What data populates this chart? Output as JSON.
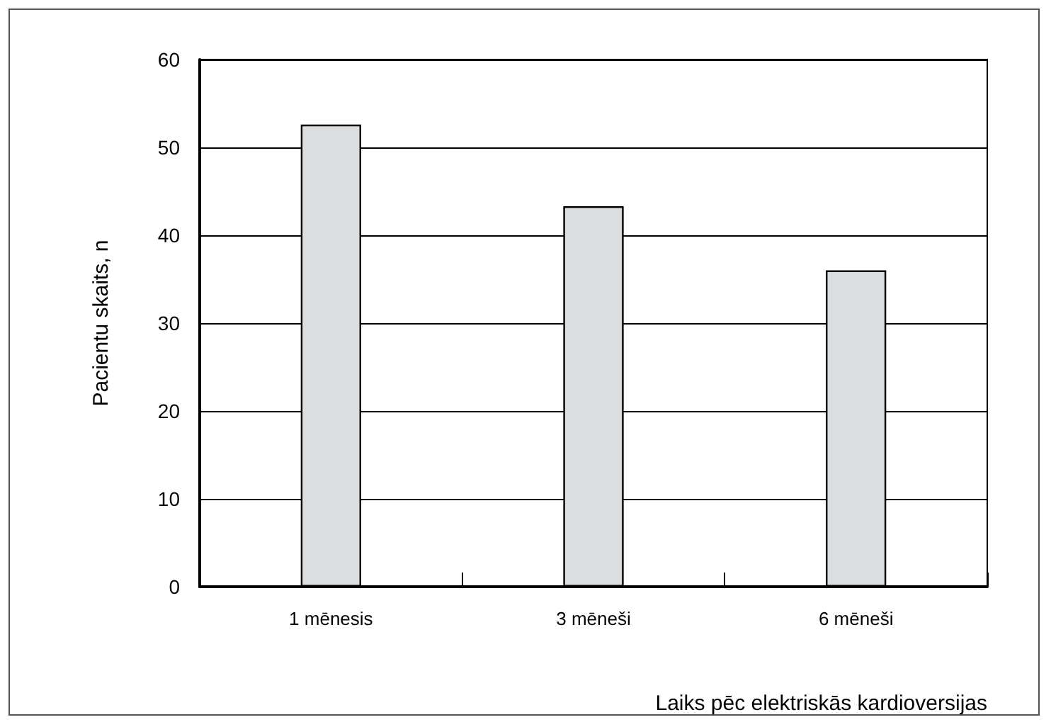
{
  "chart_data": {
    "type": "bar",
    "xlabel": "Laiks pēc elektriskās kardioversijas",
    "ylabel": "Pacientu skaits, n",
    "categories": [
      "1 mēnesis",
      "3 mēneši",
      "6 mēneši"
    ],
    "values": [
      52.6,
      43.3,
      36.0
    ],
    "color": "#dcdddf",
    "ylim": [
      0,
      60
    ],
    "yticks": [
      0,
      10,
      20,
      30,
      40,
      50,
      60
    ],
    "grid": "y"
  }
}
